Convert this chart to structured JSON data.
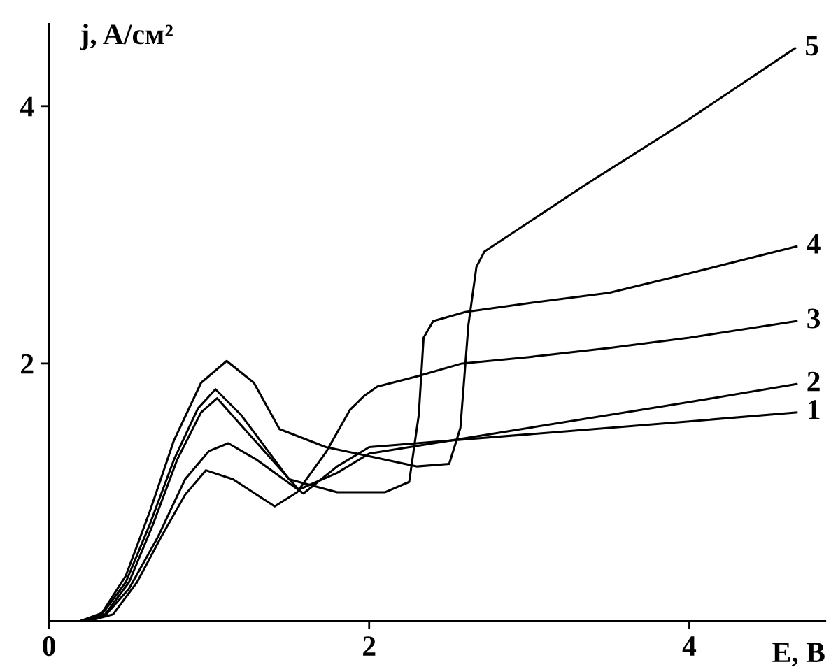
{
  "chart_data": {
    "type": "line",
    "xlabel": "E, B",
    "ylabel": "j, A/см²",
    "xlim": [
      0,
      4.85
    ],
    "ylim": [
      0,
      4.64
    ],
    "xticks": [
      0,
      2,
      4
    ],
    "yticks": [
      2,
      4
    ],
    "grid": false,
    "marker": "none",
    "line_style": "solid",
    "series": [
      {
        "name": "1",
        "color": "#000000",
        "x": [
          0.22,
          0.35,
          0.5,
          0.68,
          0.85,
          1.0,
          1.12,
          1.3,
          1.59,
          1.8,
          2.0,
          2.5,
          3.0,
          3.5,
          4.0,
          4.67
        ],
        "values": [
          0,
          0.04,
          0.25,
          0.65,
          1.1,
          1.32,
          1.38,
          1.25,
          0.99,
          1.2,
          1.35,
          1.4,
          1.45,
          1.5,
          1.55,
          1.62
        ]
      },
      {
        "name": "2",
        "color": "#000000",
        "x": [
          0.22,
          0.35,
          0.5,
          0.65,
          0.8,
          0.95,
          1.05,
          1.2,
          1.56,
          1.8,
          2.0,
          2.6,
          3.0,
          3.5,
          4.0,
          4.67
        ],
        "values": [
          0,
          0.05,
          0.3,
          0.75,
          1.25,
          1.62,
          1.73,
          1.52,
          1.02,
          1.15,
          1.3,
          1.42,
          1.5,
          1.6,
          1.7,
          1.84
        ]
      },
      {
        "name": "3",
        "color": "#000000",
        "x": [
          0.25,
          0.4,
          0.55,
          0.7,
          0.85,
          0.98,
          1.15,
          1.41,
          1.55,
          1.73,
          1.88,
          1.97,
          2.05,
          2.3,
          2.58,
          3.0,
          3.5,
          4.0,
          4.67
        ],
        "values": [
          0,
          0.05,
          0.3,
          0.65,
          0.98,
          1.17,
          1.1,
          0.89,
          1.0,
          1.31,
          1.64,
          1.75,
          1.82,
          1.9,
          2.0,
          2.05,
          2.12,
          2.2,
          2.33
        ]
      },
      {
        "name": "4",
        "color": "#000000",
        "x": [
          0.2,
          0.33,
          0.48,
          0.63,
          0.78,
          0.93,
          1.04,
          1.2,
          1.5,
          1.8,
          2.1,
          2.25,
          2.31,
          2.34,
          2.4,
          2.6,
          3.0,
          3.5,
          4.0,
          4.67
        ],
        "values": [
          0,
          0.05,
          0.3,
          0.75,
          1.25,
          1.65,
          1.8,
          1.6,
          1.1,
          1.0,
          1.0,
          1.08,
          1.6,
          2.2,
          2.33,
          2.4,
          2.47,
          2.55,
          2.7,
          2.91
        ]
      },
      {
        "name": "5",
        "color": "#000000",
        "x": [
          0.2,
          0.33,
          0.48,
          0.63,
          0.78,
          0.95,
          1.11,
          1.28,
          1.44,
          1.73,
          2.0,
          2.3,
          2.5,
          2.57,
          2.62,
          2.67,
          2.72,
          3.34,
          4.0,
          4.66
        ],
        "values": [
          0,
          0.06,
          0.35,
          0.85,
          1.4,
          1.85,
          2.02,
          1.85,
          1.49,
          1.35,
          1.28,
          1.2,
          1.22,
          1.5,
          2.3,
          2.75,
          2.87,
          3.38,
          3.9,
          4.45
        ]
      }
    ]
  }
}
